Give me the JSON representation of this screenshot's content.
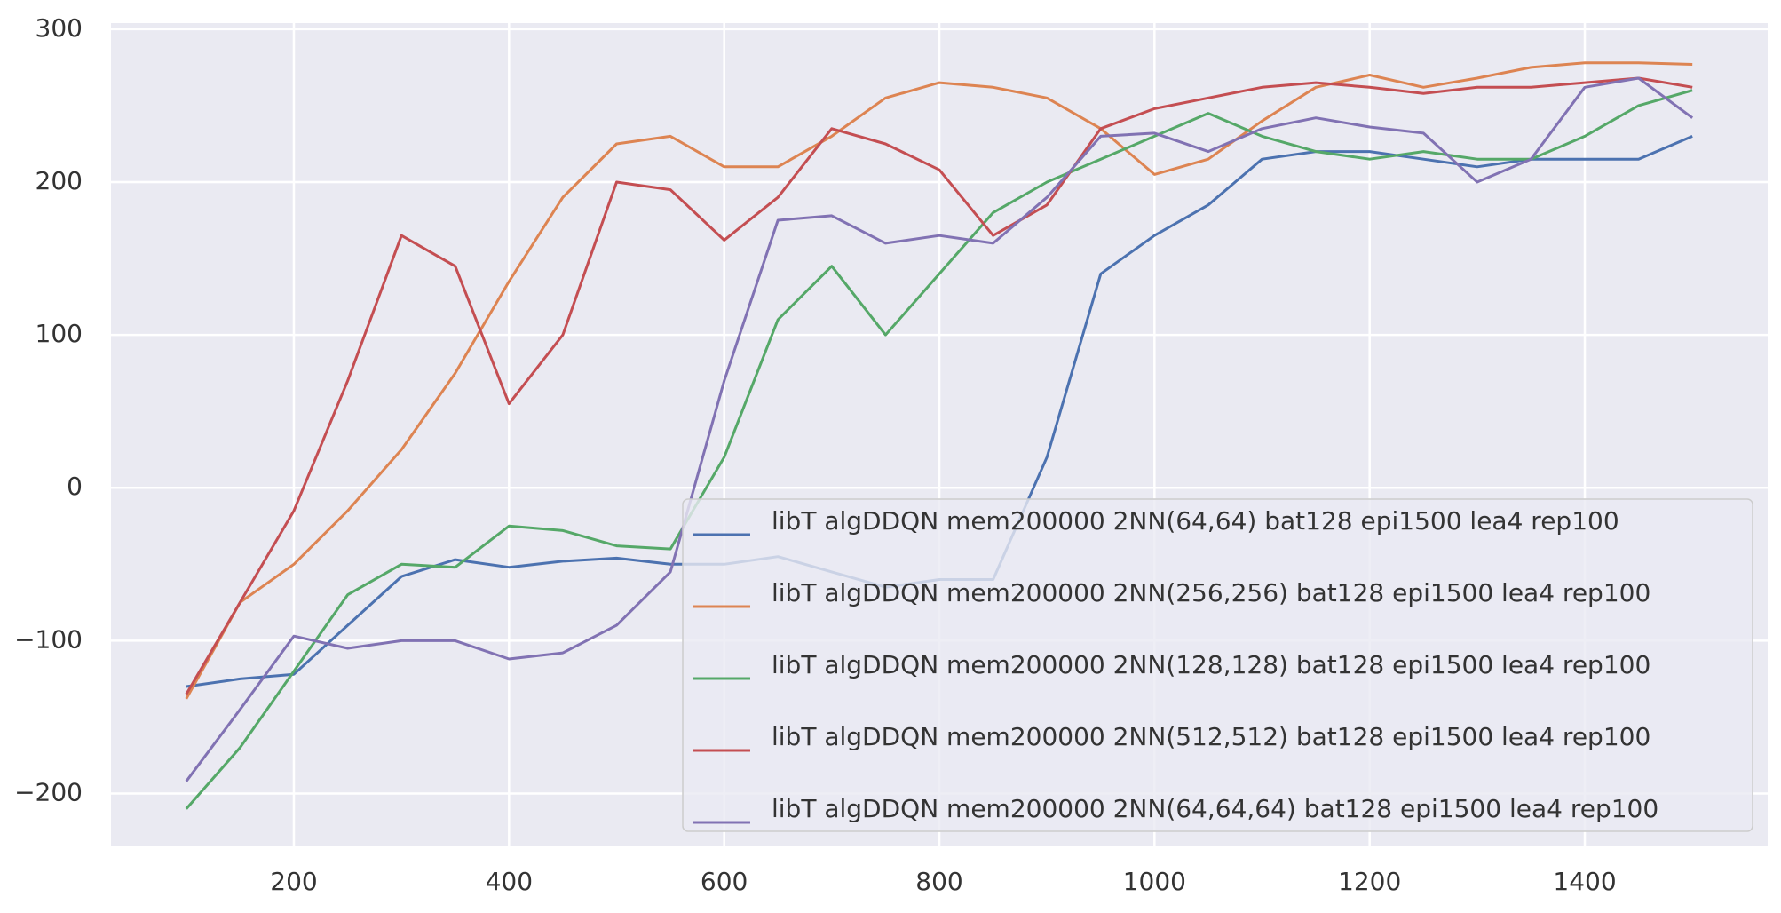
{
  "chart_data": {
    "type": "line",
    "x": [
      100,
      150,
      200,
      250,
      300,
      350,
      400,
      450,
      500,
      550,
      600,
      650,
      700,
      750,
      800,
      850,
      900,
      950,
      1000,
      1050,
      1100,
      1150,
      1200,
      1250,
      1300,
      1350,
      1400,
      1450,
      1500
    ],
    "series": [
      {
        "name": "libT algDDQN mem200000 2NN(64,64) bat128 epi1500 lea4 rep100",
        "color": "#4c72b0",
        "values": [
          -130,
          -125,
          -122,
          -90,
          -58,
          -47,
          -52,
          -48,
          -46,
          -50,
          -50,
          -45,
          -55,
          -65,
          -60,
          -60,
          20,
          140,
          165,
          185,
          215,
          220,
          220,
          215,
          210,
          215,
          215,
          215,
          230
        ]
      },
      {
        "name": "libT algDDQN mem200000 2NN(256,256) bat128 epi1500 lea4 rep100",
        "color": "#dd8452",
        "values": [
          -138,
          -75,
          -50,
          -15,
          25,
          75,
          135,
          190,
          225,
          230,
          210,
          210,
          230,
          255,
          265,
          262,
          255,
          235,
          205,
          215,
          240,
          262,
          270,
          262,
          268,
          275,
          278,
          278,
          277
        ]
      },
      {
        "name": "libT algDDQN mem200000 2NN(128,128) bat128 epi1500 lea4 rep100",
        "color": "#55a868",
        "values": [
          -210,
          -170,
          -120,
          -70,
          -50,
          -52,
          -25,
          -28,
          -38,
          -40,
          20,
          110,
          145,
          100,
          140,
          180,
          200,
          215,
          230,
          245,
          230,
          220,
          215,
          220,
          215,
          215,
          230,
          250,
          260
        ]
      },
      {
        "name": "libT algDDQN mem200000 2NN(512,512) bat128 epi1500 lea4 rep100",
        "color": "#c44e52",
        "values": [
          -135,
          -75,
          -15,
          70,
          165,
          145,
          55,
          100,
          200,
          195,
          162,
          190,
          235,
          225,
          208,
          165,
          185,
          235,
          248,
          255,
          262,
          265,
          262,
          258,
          262,
          262,
          265,
          268,
          262
        ]
      },
      {
        "name": "libT algDDQN mem200000 2NN(64,64,64) bat128 epi1500 lea4 rep100",
        "color": "#8172b3",
        "values": [
          -192,
          -145,
          -97,
          -105,
          -100,
          -100,
          -112,
          -108,
          -90,
          -55,
          70,
          175,
          178,
          160,
          165,
          160,
          190,
          230,
          232,
          220,
          235,
          242,
          236,
          232,
          200,
          215,
          262,
          268,
          242
        ]
      }
    ],
    "xlim": [
      30,
      1570
    ],
    "ylim": [
      -234,
      304
    ],
    "xticks": [
      200,
      400,
      600,
      800,
      1000,
      1200,
      1400
    ],
    "yticks": [
      {
        "value": -200,
        "label": "−200"
      },
      {
        "value": -100,
        "label": "−100"
      },
      0,
      100,
      200,
      300
    ],
    "grid": true,
    "legend": "lower right"
  }
}
